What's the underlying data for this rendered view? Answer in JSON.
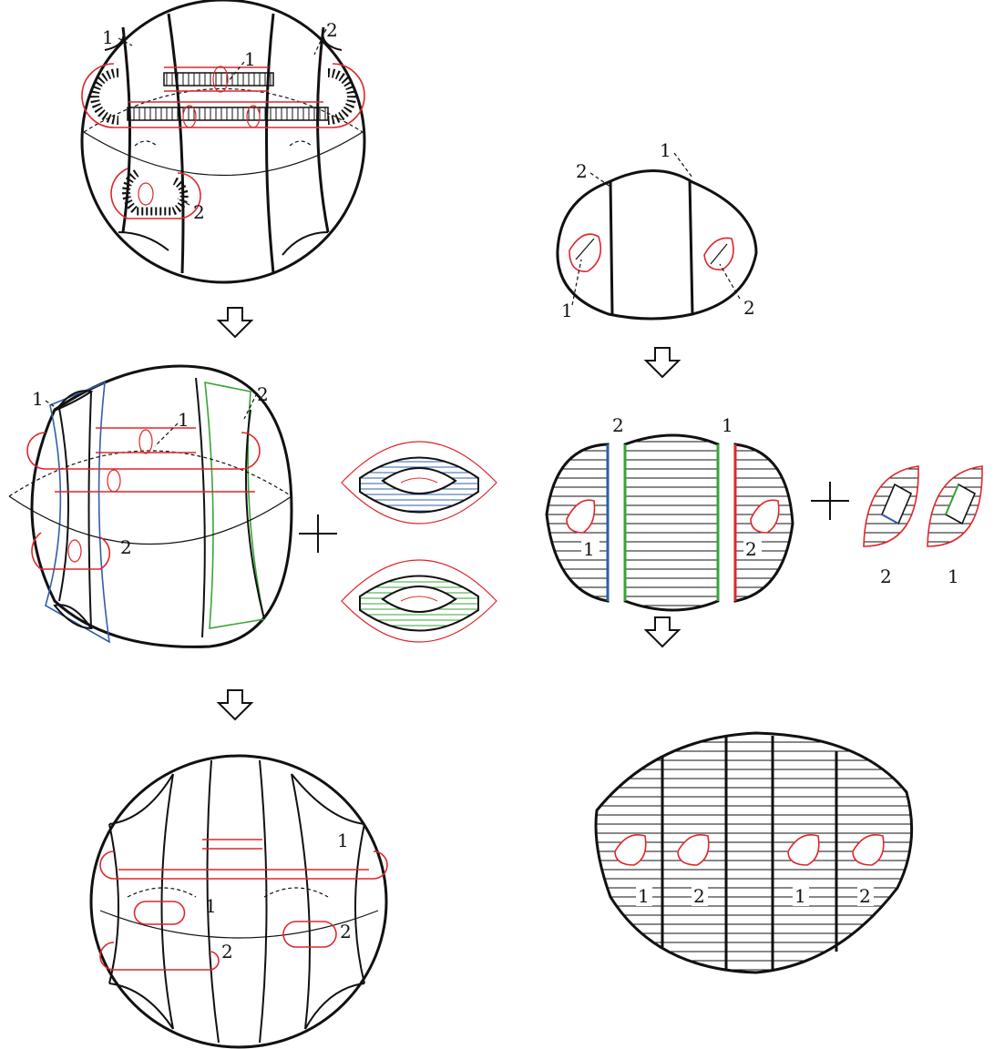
{
  "colors": {
    "ink": "#111111",
    "red": "#e0262a",
    "blue": "#2f5fa8",
    "green": "#3aa33a"
  },
  "labels": {
    "one": "1",
    "two": "2"
  },
  "symbols": {
    "plus": "+",
    "arrow": "down-arrow-icon"
  }
}
